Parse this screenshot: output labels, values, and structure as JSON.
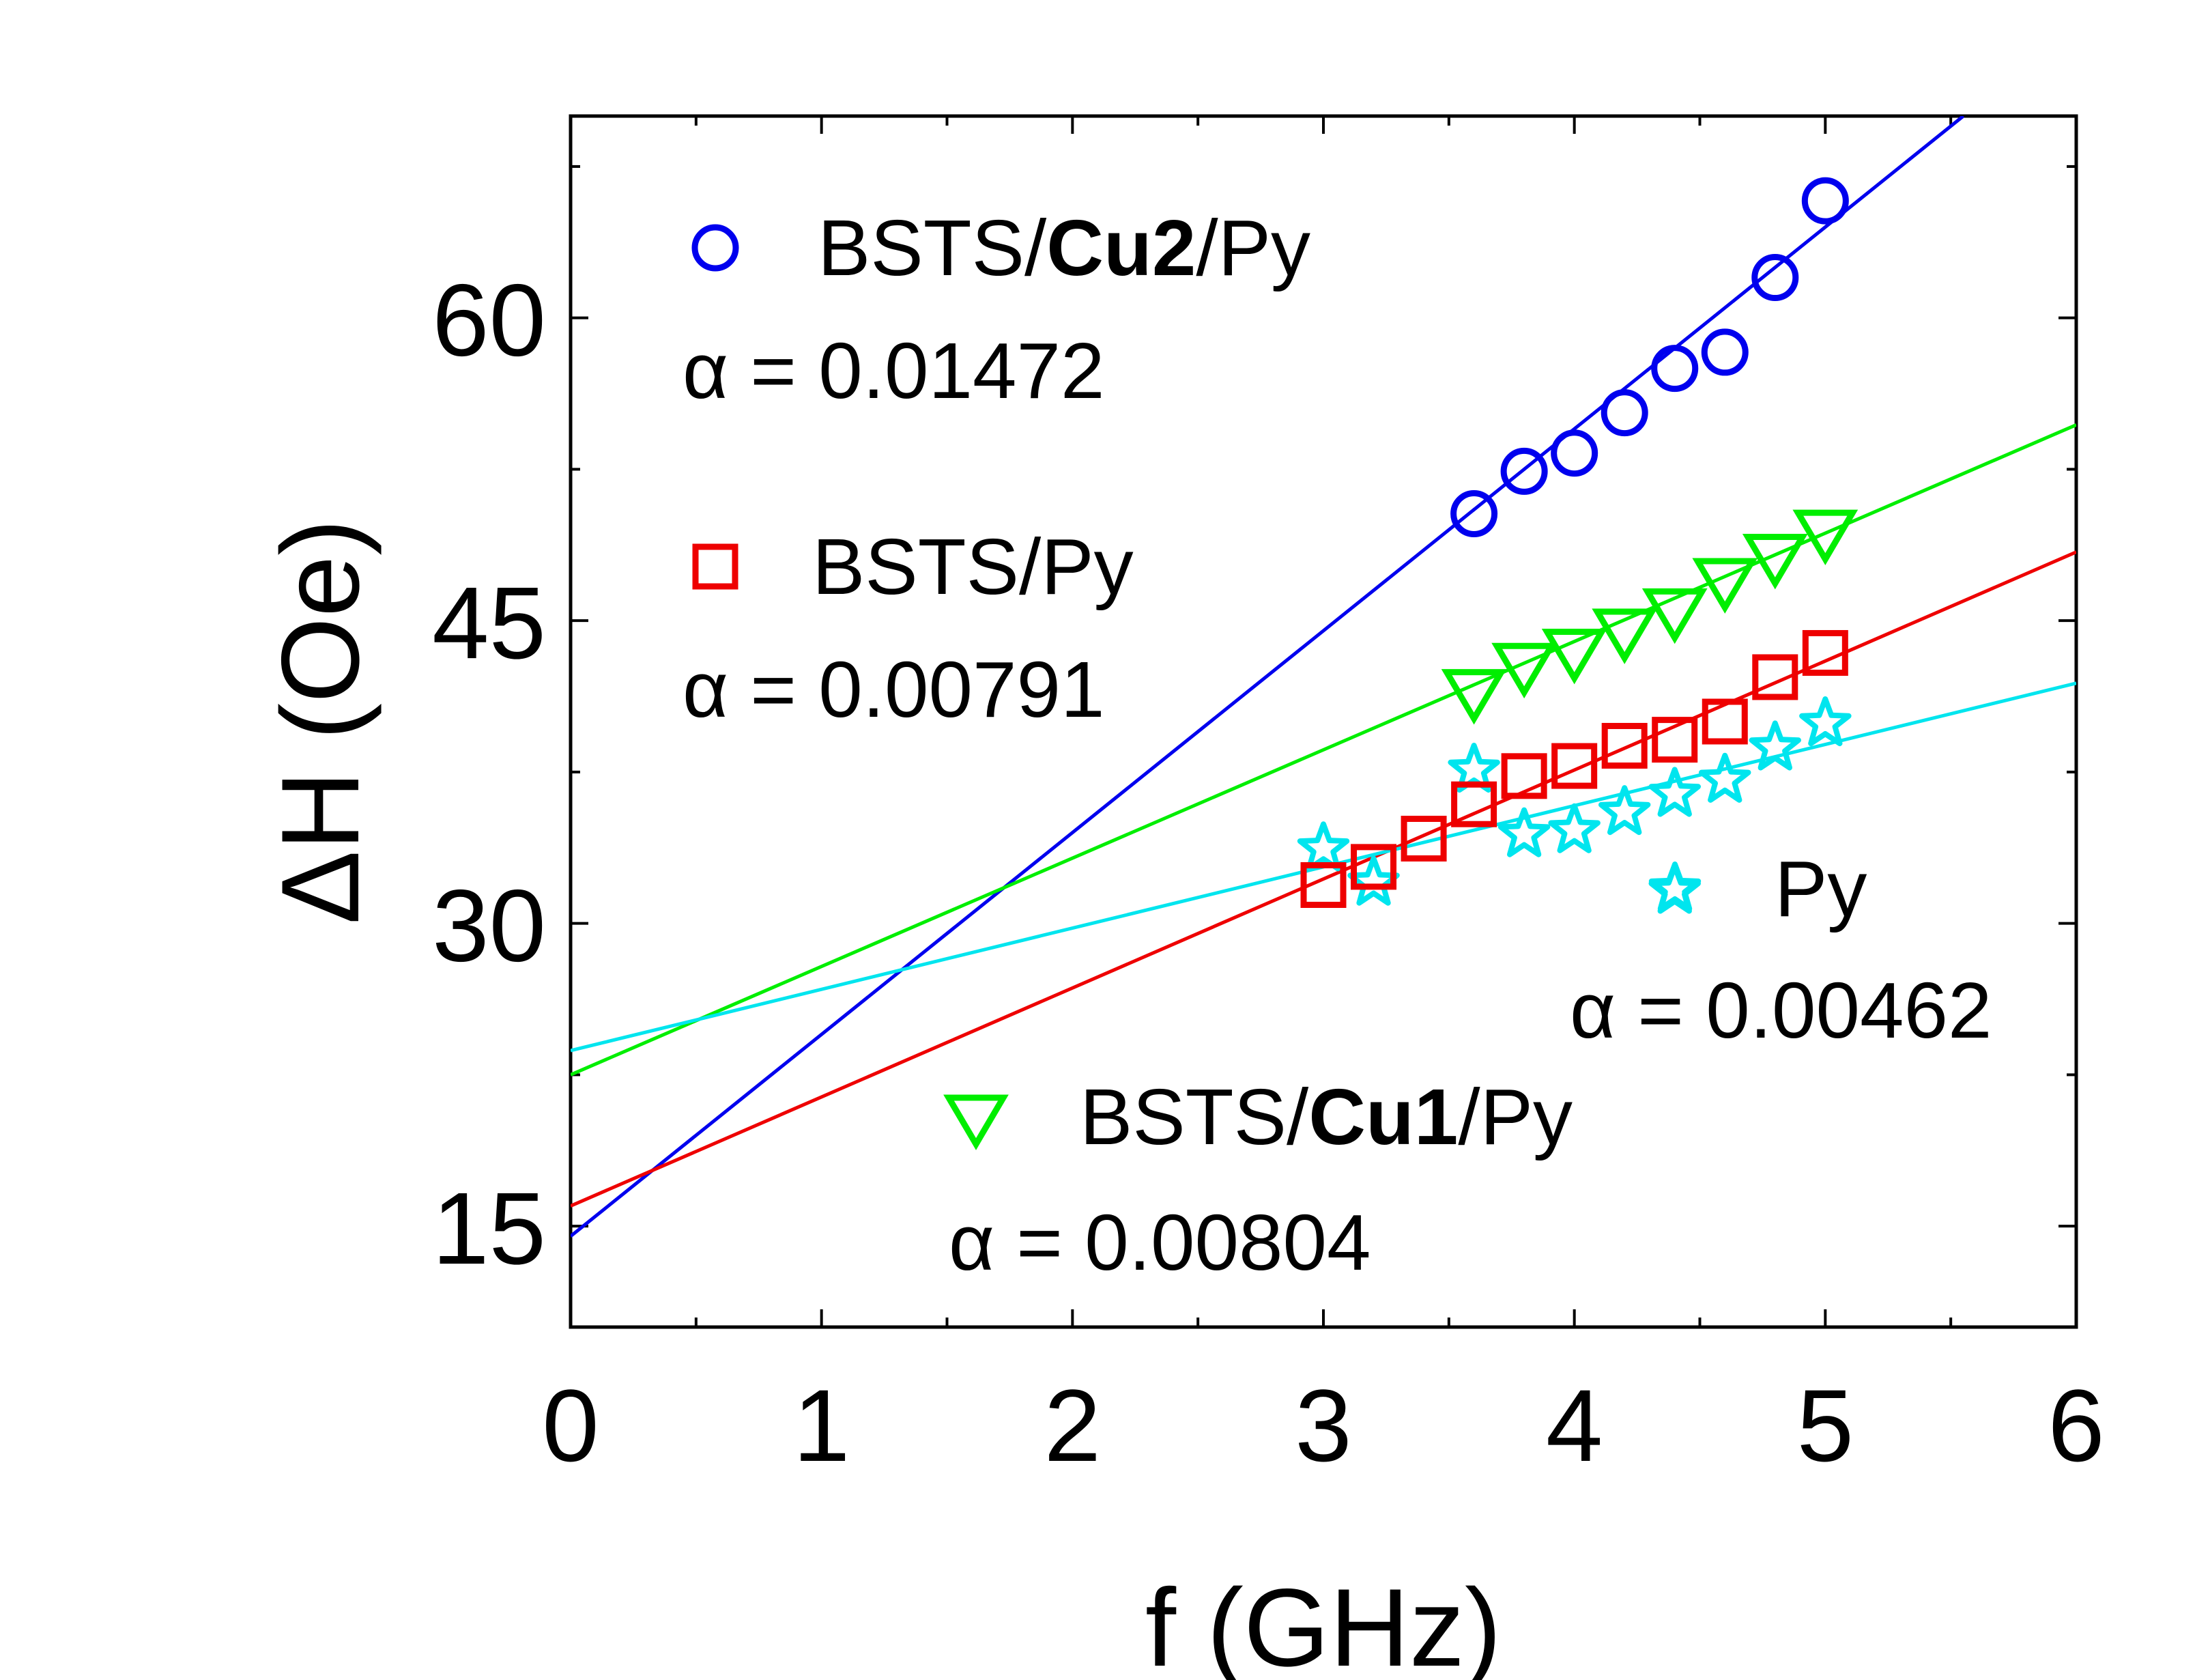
{
  "chart_data": {
    "type": "scatter",
    "xlabel": "f (GHz)",
    "ylabel": "ΔH (Oe)",
    "xlim": [
      0,
      6
    ],
    "ylim": [
      10,
      70
    ],
    "x_ticks": [
      "0",
      "1",
      "2",
      "3",
      "4",
      "5",
      "6"
    ],
    "y_ticks": [
      "15",
      "30",
      "45",
      "60"
    ],
    "x_tick_values": [
      0,
      1,
      2,
      3,
      4,
      5,
      6
    ],
    "y_tick_values": [
      15,
      30,
      45,
      60
    ],
    "grid": false,
    "series": [
      {
        "name": "BSTS/Cu2/Py",
        "name_parts": [
          "BSTS/",
          "Cu2",
          "/Py"
        ],
        "marker": "circle",
        "color": "#0000ee",
        "alpha_label": "α = 0.01472",
        "x": [
          3.6,
          3.8,
          4.0,
          4.2,
          4.4,
          4.6,
          4.8,
          5.0
        ],
        "y": [
          50.3,
          52.4,
          53.3,
          55.3,
          57.5,
          58.3,
          62.0,
          65.8
        ],
        "fit": [
          [
            0,
            14.5
          ],
          [
            5.55,
            70
          ]
        ]
      },
      {
        "name": "BSTS/Py",
        "name_parts": [
          "BSTS/Py"
        ],
        "marker": "square",
        "color": "#ee0000",
        "alpha_label": "α = 0.00791",
        "x": [
          3.0,
          3.2,
          3.4,
          3.6,
          3.8,
          4.0,
          4.2,
          4.4,
          4.6,
          4.8,
          5.0
        ],
        "y": [
          31.9,
          32.8,
          34.2,
          35.9,
          37.3,
          37.8,
          38.8,
          39.1,
          40.0,
          42.2,
          43.4
        ],
        "fit": [
          [
            0,
            16.0
          ],
          [
            6,
            48.4
          ]
        ]
      },
      {
        "name": "BSTS/Cu1/Py",
        "name_parts": [
          "BSTS/",
          "Cu1",
          "/Py"
        ],
        "marker": "triangle-down",
        "color": "#00ee00",
        "alpha_label": "α = 0.00804",
        "x": [
          3.6,
          3.8,
          4.0,
          4.2,
          4.4,
          4.6,
          4.8,
          5.0
        ],
        "y": [
          41.5,
          42.8,
          43.5,
          44.5,
          45.5,
          47.0,
          48.2,
          49.4
        ],
        "fit": [
          [
            0,
            22.5
          ],
          [
            6,
            54.7
          ]
        ]
      },
      {
        "name": "Py",
        "name_parts": [
          "Py"
        ],
        "marker": "star",
        "color": "#00e5ee",
        "alpha_label": "α = 0.00462",
        "x": [
          3.0,
          3.2,
          3.6,
          3.8,
          4.0,
          4.2,
          4.4,
          4.6,
          4.8,
          5.0,
          4.4
        ],
        "y": [
          33.7,
          32.0,
          37.6,
          34.4,
          34.6,
          35.5,
          36.4,
          37.1,
          38.7,
          39.9,
          31.6
        ],
        "fit": [
          [
            0,
            23.7
          ],
          [
            6,
            41.9
          ]
        ]
      }
    ]
  }
}
